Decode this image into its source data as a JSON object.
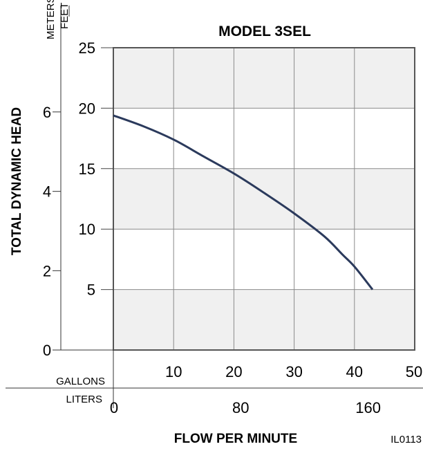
{
  "chart_data": {
    "type": "line",
    "title": "MODEL 3SEL",
    "xlabel": "FLOW PER MINUTE",
    "ylabel": "TOTAL DYNAMIC HEAD",
    "reference_code": "IL0113",
    "grid": true,
    "plot_background": "#f0f0f0",
    "line_color": "#2b3a5c",
    "x_units": "GALLONS",
    "y_units": "FEET",
    "xlim": [
      0,
      50
    ],
    "ylim": [
      0,
      25
    ],
    "x_ticks": [
      10,
      20,
      30,
      40,
      50
    ],
    "y_ticks": [
      5,
      10,
      15,
      20,
      25
    ],
    "secondary_x_units": "LITERS",
    "secondary_x_ticks": [
      {
        "label": "0",
        "gallons": 0
      },
      {
        "label": "80",
        "gallons": 21.13
      },
      {
        "label": "160",
        "gallons": 42.27
      }
    ],
    "secondary_y_units": "METERS",
    "secondary_y_ticks": [
      {
        "label": "0",
        "feet": 0
      },
      {
        "label": "2",
        "feet": 6.56
      },
      {
        "label": "4",
        "feet": 13.12
      },
      {
        "label": "6",
        "feet": 19.69
      }
    ],
    "series": [
      {
        "x": [
          0,
          5,
          10,
          15,
          20,
          25,
          30,
          35,
          38,
          40,
          43
        ],
        "y": [
          19.4,
          18.5,
          17.4,
          16.0,
          14.6,
          13.0,
          11.3,
          9.4,
          7.9,
          6.9,
          5.0
        ]
      }
    ]
  }
}
